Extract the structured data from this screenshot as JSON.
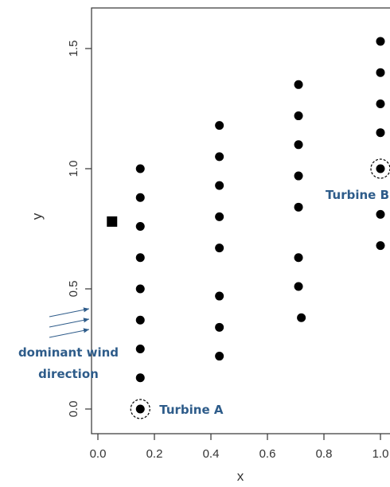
{
  "chart_data": {
    "type": "scatter",
    "title": "",
    "xlabel": "x",
    "ylabel": "y",
    "xlim": [
      -0.04,
      1.04
    ],
    "ylim": [
      -0.06,
      1.66
    ],
    "grid": false,
    "x_ticks": [
      0.0,
      0.2,
      0.4,
      0.6,
      0.8,
      1.0
    ],
    "x_tick_labels": [
      "0.0",
      "0.2",
      "0.4",
      "0.6",
      "0.8",
      "1.0"
    ],
    "y_ticks": [
      0.0,
      0.5,
      1.0,
      1.5
    ],
    "y_tick_labels": [
      "0.0",
      "0.5",
      "1.0",
      "1.5"
    ],
    "turbines": [
      {
        "x": 0.15,
        "y": 1.0
      },
      {
        "x": 0.15,
        "y": 0.88
      },
      {
        "x": 0.15,
        "y": 0.76
      },
      {
        "x": 0.15,
        "y": 0.63
      },
      {
        "x": 0.15,
        "y": 0.5
      },
      {
        "x": 0.15,
        "y": 0.37
      },
      {
        "x": 0.15,
        "y": 0.25
      },
      {
        "x": 0.15,
        "y": 0.13
      },
      {
        "x": 0.15,
        "y": 0.0
      },
      {
        "x": 0.43,
        "y": 1.18
      },
      {
        "x": 0.43,
        "y": 1.05
      },
      {
        "x": 0.43,
        "y": 0.93
      },
      {
        "x": 0.43,
        "y": 0.8
      },
      {
        "x": 0.43,
        "y": 0.67
      },
      {
        "x": 0.43,
        "y": 0.47
      },
      {
        "x": 0.43,
        "y": 0.34
      },
      {
        "x": 0.43,
        "y": 0.22
      },
      {
        "x": 0.71,
        "y": 1.35
      },
      {
        "x": 0.71,
        "y": 1.22
      },
      {
        "x": 0.71,
        "y": 1.1
      },
      {
        "x": 0.71,
        "y": 0.97
      },
      {
        "x": 0.71,
        "y": 0.84
      },
      {
        "x": 0.71,
        "y": 0.63
      },
      {
        "x": 0.71,
        "y": 0.51
      },
      {
        "x": 0.72,
        "y": 0.38
      },
      {
        "x": 1.0,
        "y": 1.53
      },
      {
        "x": 1.0,
        "y": 1.4
      },
      {
        "x": 1.0,
        "y": 1.27
      },
      {
        "x": 1.0,
        "y": 1.15
      },
      {
        "x": 1.0,
        "y": 1.0
      },
      {
        "x": 1.0,
        "y": 0.81
      },
      {
        "x": 1.0,
        "y": 0.68
      }
    ],
    "square_marker": {
      "x": 0.05,
      "y": 0.78
    },
    "highlighted": [
      {
        "label": "Turbine A",
        "x": 0.15,
        "y": 0.0
      },
      {
        "label": "Turbine B",
        "x": 1.0,
        "y": 1.0
      }
    ],
    "wind_annotation": {
      "lines": [
        "dominant wind",
        "direction"
      ],
      "arrow_count": 3
    },
    "colors": {
      "points": "#000000",
      "annotation": "#2e5c8a",
      "axis": "#333333"
    }
  }
}
